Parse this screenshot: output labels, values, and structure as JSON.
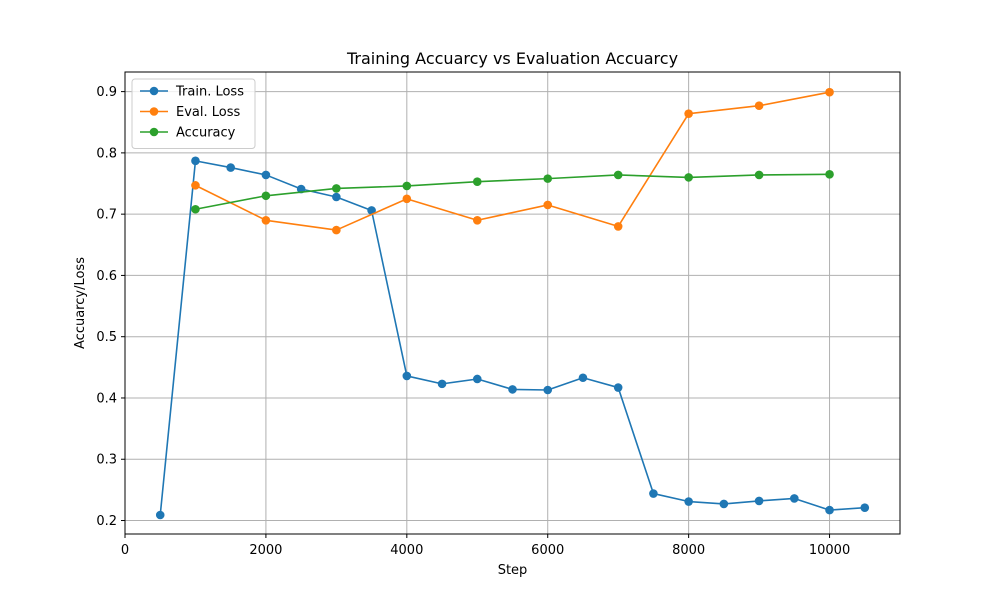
{
  "chart_data": {
    "type": "line",
    "title": "Training Accuarcy vs Evaluation Accuarcy",
    "xlabel": "Step",
    "ylabel": "Accuarcy/Loss",
    "xlim": [
      0,
      11000
    ],
    "ylim": [
      0.178,
      0.932
    ],
    "x_ticks": [
      0,
      2000,
      4000,
      6000,
      8000,
      10000
    ],
    "x_tick_labels": [
      "0",
      "2000",
      "4000",
      "6000",
      "8000",
      "10000"
    ],
    "y_ticks": [
      0.2,
      0.3,
      0.4,
      0.5,
      0.6,
      0.7,
      0.8,
      0.9
    ],
    "y_tick_labels": [
      "0.2",
      "0.3",
      "0.4",
      "0.5",
      "0.6",
      "0.7",
      "0.8",
      "0.9"
    ],
    "grid": true,
    "legend_position": "top-left",
    "series": [
      {
        "name": "Train. Loss",
        "color": "#1f77b4",
        "x": [
          500,
          1000,
          1500,
          2000,
          2500,
          3000,
          3500,
          4000,
          4500,
          5000,
          5500,
          6000,
          6500,
          7000,
          7500,
          8000,
          8500,
          9000,
          9500,
          10000,
          10500
        ],
        "y": [
          0.209,
          0.787,
          0.776,
          0.764,
          0.741,
          0.728,
          0.706,
          0.436,
          0.423,
          0.431,
          0.414,
          0.413,
          0.433,
          0.417,
          0.244,
          0.231,
          0.227,
          0.232,
          0.236,
          0.217,
          0.221
        ]
      },
      {
        "name": "Eval. Loss",
        "color": "#ff7f0e",
        "x": [
          1000,
          2000,
          3000,
          4000,
          5000,
          6000,
          7000,
          8000,
          9000,
          10000
        ],
        "y": [
          0.747,
          0.69,
          0.674,
          0.725,
          0.69,
          0.715,
          0.68,
          0.864,
          0.877,
          0.899
        ]
      },
      {
        "name": "Accuracy",
        "color": "#2ca02c",
        "x": [
          1000,
          2000,
          3000,
          4000,
          5000,
          6000,
          7000,
          8000,
          9000,
          10000
        ],
        "y": [
          0.708,
          0.73,
          0.742,
          0.746,
          0.753,
          0.758,
          0.764,
          0.76,
          0.764,
          0.765
        ]
      }
    ]
  }
}
